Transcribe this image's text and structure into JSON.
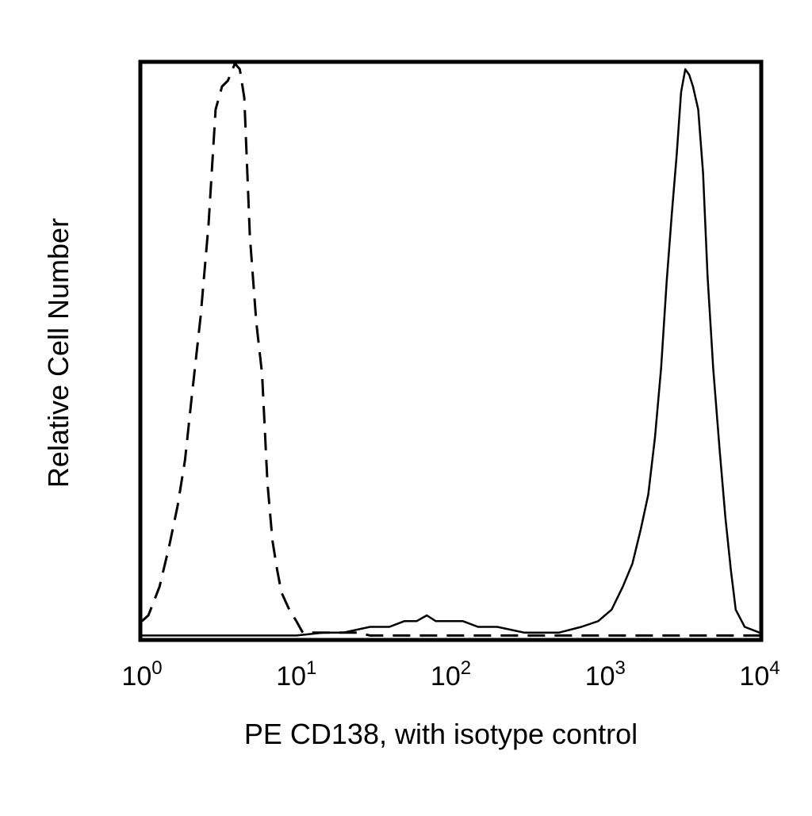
{
  "chart_data": {
    "type": "line",
    "title": "",
    "xlabel": "PE CD138, with isotype control",
    "ylabel": "Relative Cell Number",
    "x_scale": "log",
    "xlim": [
      1,
      10000
    ],
    "ylim": [
      0,
      100
    ],
    "grid": false,
    "legend": "none",
    "x_ticks": [
      {
        "value": 1,
        "base": "10",
        "exp": "0"
      },
      {
        "value": 10,
        "base": "10",
        "exp": "1"
      },
      {
        "value": 100,
        "base": "10",
        "exp": "2"
      },
      {
        "value": 1000,
        "base": "10",
        "exp": "3"
      },
      {
        "value": 10000,
        "base": "10",
        "exp": "4"
      }
    ],
    "series": [
      {
        "style": "dashed",
        "color": "#000000",
        "x": [
          1.0,
          1.1,
          1.3,
          1.5,
          1.7,
          1.9,
          2.1,
          2.4,
          2.7,
          3.0,
          3.3,
          3.6,
          4.0,
          4.3,
          4.6,
          5.0,
          5.5,
          6.0,
          6.5,
          7.0,
          7.5,
          8.0,
          9.0,
          10.0,
          11.0,
          12.0,
          14.0,
          17.0,
          20.0,
          25.0,
          30.0,
          40.0,
          50.0,
          60.0,
          80.0,
          100.0,
          130.0,
          200.0,
          300.0,
          500.0,
          1000.0,
          2000.0,
          5000.0,
          10000.0
        ],
        "y": [
          3,
          4,
          9,
          16,
          23,
          31,
          42,
          56,
          72,
          92,
          96,
          97,
          100,
          99,
          94,
          70,
          55,
          46,
          27,
          17,
          12,
          8,
          5,
          3,
          1,
          1,
          1,
          1,
          1,
          1,
          0.5,
          0.5,
          0.5,
          0.5,
          0.5,
          0.5,
          0.5,
          0.5,
          0.5,
          0.5,
          0.5,
          0.5,
          0.5,
          0.5
        ]
      },
      {
        "style": "solid",
        "color": "#000000",
        "x": [
          1.0,
          10.0,
          15.0,
          20.0,
          30.0,
          40.0,
          50.0,
          60.0,
          70.0,
          80.0,
          100.0,
          120.0,
          150.0,
          200.0,
          300.0,
          500.0,
          700.0,
          900.0,
          1100.0,
          1300.0,
          1500.0,
          1700.0,
          1900.0,
          2100.0,
          2300.0,
          2500.0,
          2700.0,
          2900.0,
          3100.0,
          3300.0,
          3500.0,
          3700.0,
          4000.0,
          4300.0,
          4600.0,
          5000.0,
          5500.0,
          6000.0,
          6500.0,
          7000.0,
          8000.0,
          10000.0
        ],
        "y": [
          0.5,
          0.5,
          1,
          1,
          2,
          2,
          3,
          3,
          4,
          3,
          3,
          3,
          2,
          2,
          1,
          1,
          2,
          3,
          5,
          9,
          13,
          19,
          25,
          35,
          47,
          62,
          74,
          84,
          95,
          99,
          98,
          96,
          92,
          81,
          63,
          47,
          33,
          21,
          12,
          5,
          2,
          1
        ]
      }
    ]
  }
}
